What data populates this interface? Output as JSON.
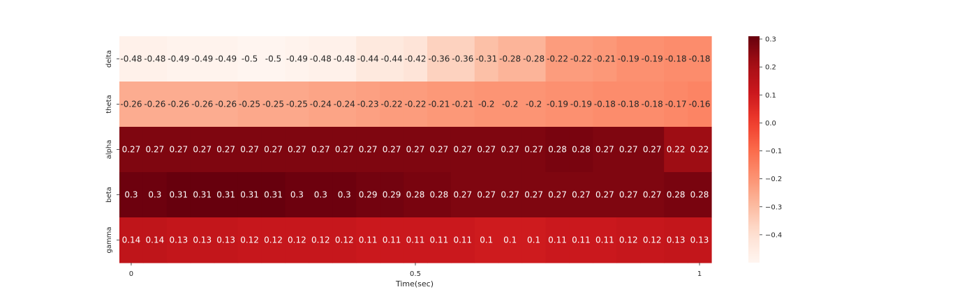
{
  "chart_data": {
    "type": "heatmap",
    "title": "",
    "xlabel": "Time(sec)",
    "ylabel": "",
    "rows": [
      "delta",
      "theta",
      "alpha",
      "beta",
      "gamma"
    ],
    "x_ticks": [
      {
        "label": "0",
        "col": 0
      },
      {
        "label": "0.5",
        "col": 12
      },
      {
        "label": "1",
        "col": 24
      }
    ],
    "values": [
      [
        -0.48,
        -0.48,
        -0.49,
        -0.49,
        -0.49,
        -0.5,
        -0.5,
        -0.49,
        -0.48,
        -0.48,
        -0.44,
        -0.44,
        -0.42,
        -0.36,
        -0.36,
        -0.31,
        -0.28,
        -0.28,
        -0.22,
        -0.22,
        -0.21,
        -0.19,
        -0.19,
        -0.18,
        -0.18
      ],
      [
        -0.26,
        -0.26,
        -0.26,
        -0.26,
        -0.26,
        -0.25,
        -0.25,
        -0.25,
        -0.24,
        -0.24,
        -0.23,
        -0.22,
        -0.22,
        -0.21,
        -0.21,
        -0.2,
        -0.2,
        -0.2,
        -0.19,
        -0.19,
        -0.18,
        -0.18,
        -0.18,
        -0.17,
        -0.16
      ],
      [
        0.27,
        0.27,
        0.27,
        0.27,
        0.27,
        0.27,
        0.27,
        0.27,
        0.27,
        0.27,
        0.27,
        0.27,
        0.27,
        0.27,
        0.27,
        0.27,
        0.27,
        0.27,
        0.28,
        0.28,
        0.27,
        0.27,
        0.27,
        0.22,
        0.22
      ],
      [
        0.3,
        0.3,
        0.31,
        0.31,
        0.31,
        0.31,
        0.31,
        0.3,
        0.3,
        0.3,
        0.29,
        0.29,
        0.28,
        0.28,
        0.27,
        0.27,
        0.27,
        0.27,
        0.27,
        0.27,
        0.27,
        0.27,
        0.27,
        0.28,
        0.28
      ],
      [
        0.14,
        0.14,
        0.13,
        0.13,
        0.13,
        0.12,
        0.12,
        0.12,
        0.12,
        0.12,
        0.11,
        0.11,
        0.11,
        0.11,
        0.11,
        0.1,
        0.1,
        0.1,
        0.11,
        0.11,
        0.11,
        0.12,
        0.12,
        0.13,
        0.13
      ]
    ],
    "colormap": "Reds",
    "vmin": -0.5,
    "vmax": 0.31,
    "colorbar_ticks": [
      0.3,
      0.2,
      0.1,
      0.0,
      -0.1,
      -0.2,
      -0.3,
      -0.4
    ],
    "colorbar_tick_labels": [
      "0.3",
      "0.2",
      "0.1",
      "0.0",
      "−0.1",
      "−0.2",
      "−0.3",
      "−0.4"
    ],
    "annotations_shown": true,
    "grid": false
  }
}
